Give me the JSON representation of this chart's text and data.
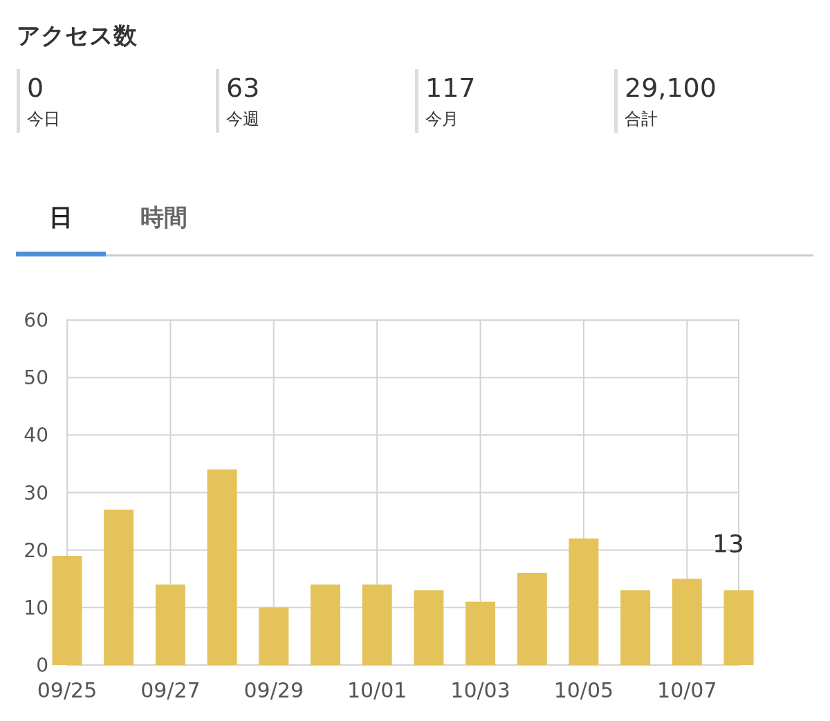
{
  "chart_data": [
    {
      "type": "other",
      "title": "アクセス数",
      "annotations": [
        "0",
        "今日",
        "63",
        "今週",
        "117",
        "今月",
        "29,100",
        "合計",
        "日",
        "時間"
      ]
    },
    {
      "type": "bar",
      "categories": [
        "09/25",
        null,
        "09/27",
        null,
        "09/29",
        null,
        "10/01",
        null,
        "10/03",
        null,
        "10/05",
        null,
        "10/07",
        null
      ],
      "values": [
        19,
        27,
        14,
        34,
        10,
        14,
        14,
        13,
        11,
        16,
        22,
        13,
        15,
        13
      ],
      "value_labels": [
        null,
        null,
        null,
        null,
        null,
        null,
        null,
        null,
        null,
        null,
        null,
        null,
        null,
        "13"
      ],
      "color": "#e4c35a",
      "ylim": [
        0,
        60
      ],
      "yticks": [
        0,
        10,
        20,
        30,
        40,
        50,
        60
      ],
      "grid": true
    }
  ]
}
